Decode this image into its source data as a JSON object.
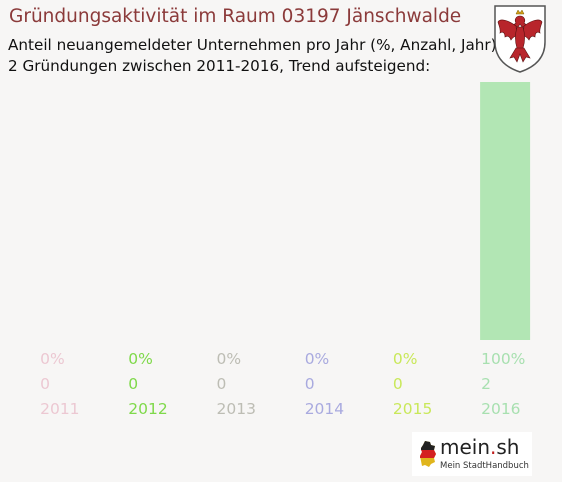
{
  "header": {
    "title": "Gründungsaktivität im Raum 03197 Jänschwalde",
    "subtitle_line1": "Anteil neuangemeldeter Unternehmen pro Jahr (%, Anzahl, Jahr)",
    "subtitle_line2": "2 Gründungen zwischen 2011-2016, Trend aufsteigend:"
  },
  "crest": {
    "icon": "brandenburg-eagle-crest-icon"
  },
  "chart_data": {
    "type": "bar",
    "categories": [
      "2011",
      "2012",
      "2013",
      "2014",
      "2015",
      "2016"
    ],
    "percent_labels": [
      "0%",
      "0%",
      "0%",
      "0%",
      "0%",
      "100%"
    ],
    "count_labels": [
      "0",
      "0",
      "0",
      "0",
      "0",
      "2"
    ],
    "values": [
      0,
      0,
      0,
      0,
      0,
      100
    ],
    "counts": [
      0,
      0,
      0,
      0,
      0,
      2
    ],
    "colors": [
      "#ecc8d2",
      "#7fd94a",
      "#bdbdb4",
      "#a9aadf",
      "#c9e85a",
      "#a8e0b0"
    ],
    "bar_color": "#b2e6b4",
    "ylim": [
      0,
      100
    ],
    "grid": false,
    "title": "Gründungsaktivität im Raum 03197 Jänschwalde"
  },
  "logo": {
    "name_main": "mein",
    "name_dot": ".",
    "name_tld": "sh",
    "tagline": "Mein StadtHandbuch",
    "icon": "germany-map-icon"
  }
}
